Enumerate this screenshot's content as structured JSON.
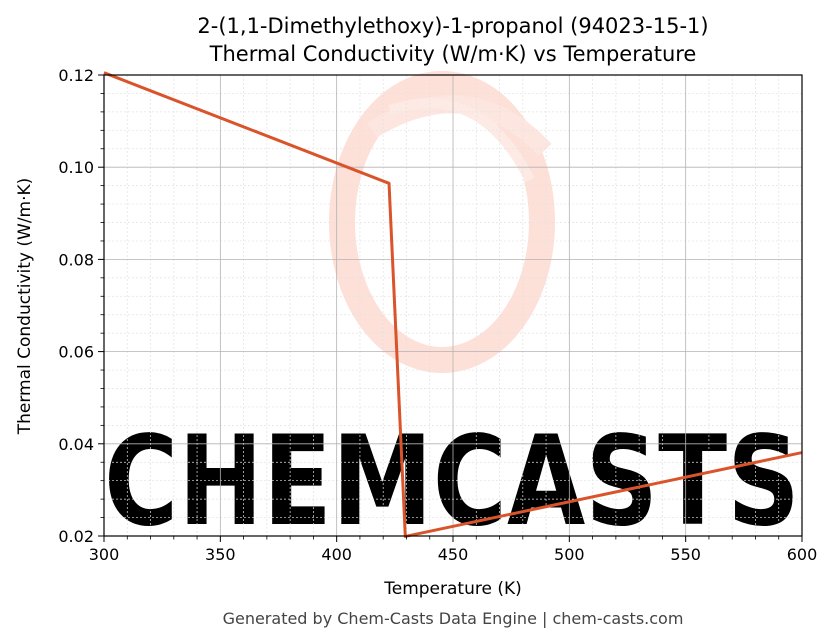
{
  "chart_data": {
    "type": "line",
    "title": "2-(1,1-Dimethylethoxy)-1-propanol (94023-15-1)",
    "subtitle": "Thermal Conductivity (W/m·K) vs Temperature",
    "xlabel": "Temperature (K)",
    "ylabel": "Thermal Conductivity (W/m·K)",
    "xlim": [
      300,
      600
    ],
    "ylim": [
      0.02,
      0.12
    ],
    "xticks": [
      300,
      350,
      400,
      450,
      500,
      550,
      600
    ],
    "yticks": [
      0.02,
      0.04,
      0.06,
      0.08,
      0.1,
      0.12
    ],
    "ytick_labels": [
      "0.02",
      "0.04",
      "0.06",
      "0.08",
      "0.10",
      "0.12"
    ],
    "grid": true,
    "series": [
      {
        "color": "#d9542b",
        "points": [
          [
            300,
            0.1205
          ],
          [
            422.5,
            0.0965
          ],
          [
            429.5,
            0.0199
          ],
          [
            600,
            0.0381
          ]
        ]
      }
    ]
  },
  "watermark": {
    "text": "CHEMCASTS",
    "color": "#fde0d8"
  },
  "footer": "Generated by Chem-Casts Data Engine | chem-casts.com"
}
